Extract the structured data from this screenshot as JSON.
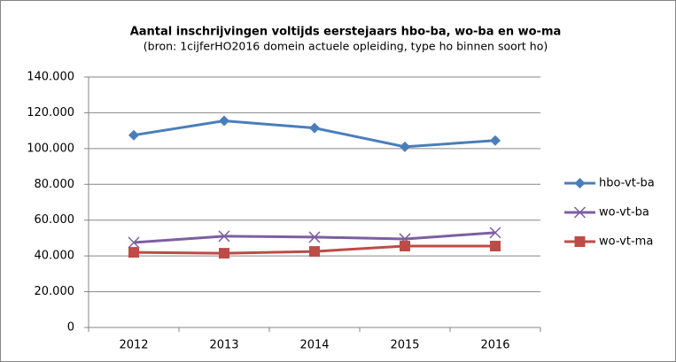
{
  "chart_data": {
    "type": "line",
    "title": "Aantal inschrijvingen voltijds eerstejaars hbo-ba, wo-ba en wo-ma",
    "subtitle": "(bron: 1cijferHO2016 domein actuele opleiding, type ho binnen soort ho)",
    "categories": [
      "2012",
      "2013",
      "2014",
      "2015",
      "2016"
    ],
    "series": [
      {
        "name": "hbo-vt-ba",
        "color": "#4a7ebb",
        "marker": "diamond",
        "values": [
          107500,
          115500,
          111500,
          101000,
          104500
        ]
      },
      {
        "name": "wo-vt-ba",
        "color": "#7d5fa0",
        "marker": "x",
        "values": [
          47500,
          51000,
          50500,
          49500,
          53000
        ]
      },
      {
        "name": "wo-vt-ma",
        "color": "#be4b48",
        "marker": "square",
        "values": [
          42000,
          41500,
          42500,
          45500,
          45500
        ]
      }
    ],
    "ylim": [
      0,
      140000
    ],
    "yticks": [
      0,
      {
        "value": 20000,
        "label": "20.000"
      },
      {
        "value": 40000,
        "label": "40.000"
      },
      {
        "value": 60000,
        "label": "60.000"
      },
      {
        "value": 80000,
        "label": "80.000"
      },
      {
        "value": 100000,
        "label": "100.000"
      },
      {
        "value": 120000,
        "label": "120.000"
      },
      {
        "value": 140000,
        "label": "140.000"
      }
    ],
    "grid": true,
    "legend": "right"
  }
}
